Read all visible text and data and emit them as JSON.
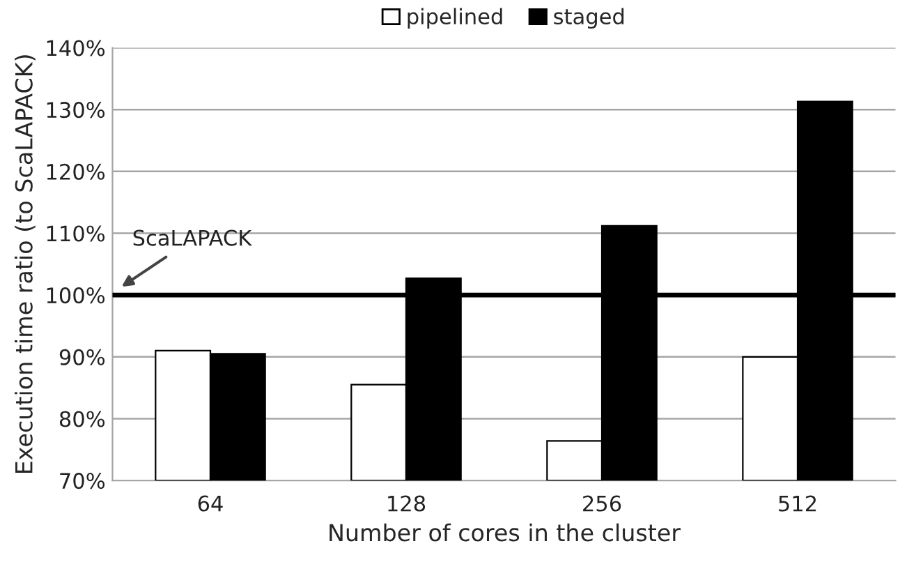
{
  "chart_data": {
    "type": "bar",
    "xlabel": "Number of cores in the cluster",
    "ylabel": "Execution time ratio (to ScaLAPACK)",
    "categories": [
      "64",
      "128",
      "256",
      "512"
    ],
    "series": [
      {
        "name": "pipelined",
        "color": "#ffffff",
        "values": [
          91.0,
          85.5,
          76.4,
          90.0
        ]
      },
      {
        "name": "staged",
        "color": "#000000",
        "values": [
          90.5,
          102.7,
          111.2,
          131.3
        ]
      }
    ],
    "ylim": [
      70,
      140
    ],
    "yticks": [
      {
        "value": 70,
        "label": "70%"
      },
      {
        "value": 80,
        "label": "80%"
      },
      {
        "value": 90,
        "label": "90%"
      },
      {
        "value": 100,
        "label": "100%"
      },
      {
        "value": 110,
        "label": "110%"
      },
      {
        "value": 120,
        "label": "120%"
      },
      {
        "value": 130,
        "label": "130%"
      },
      {
        "value": 140,
        "label": "140%"
      }
    ],
    "ref_lines": [
      {
        "axis": "y",
        "value": 100,
        "label": "ScaLAPACK",
        "color": "#000000"
      }
    ],
    "grid": "y",
    "legend": "top"
  }
}
